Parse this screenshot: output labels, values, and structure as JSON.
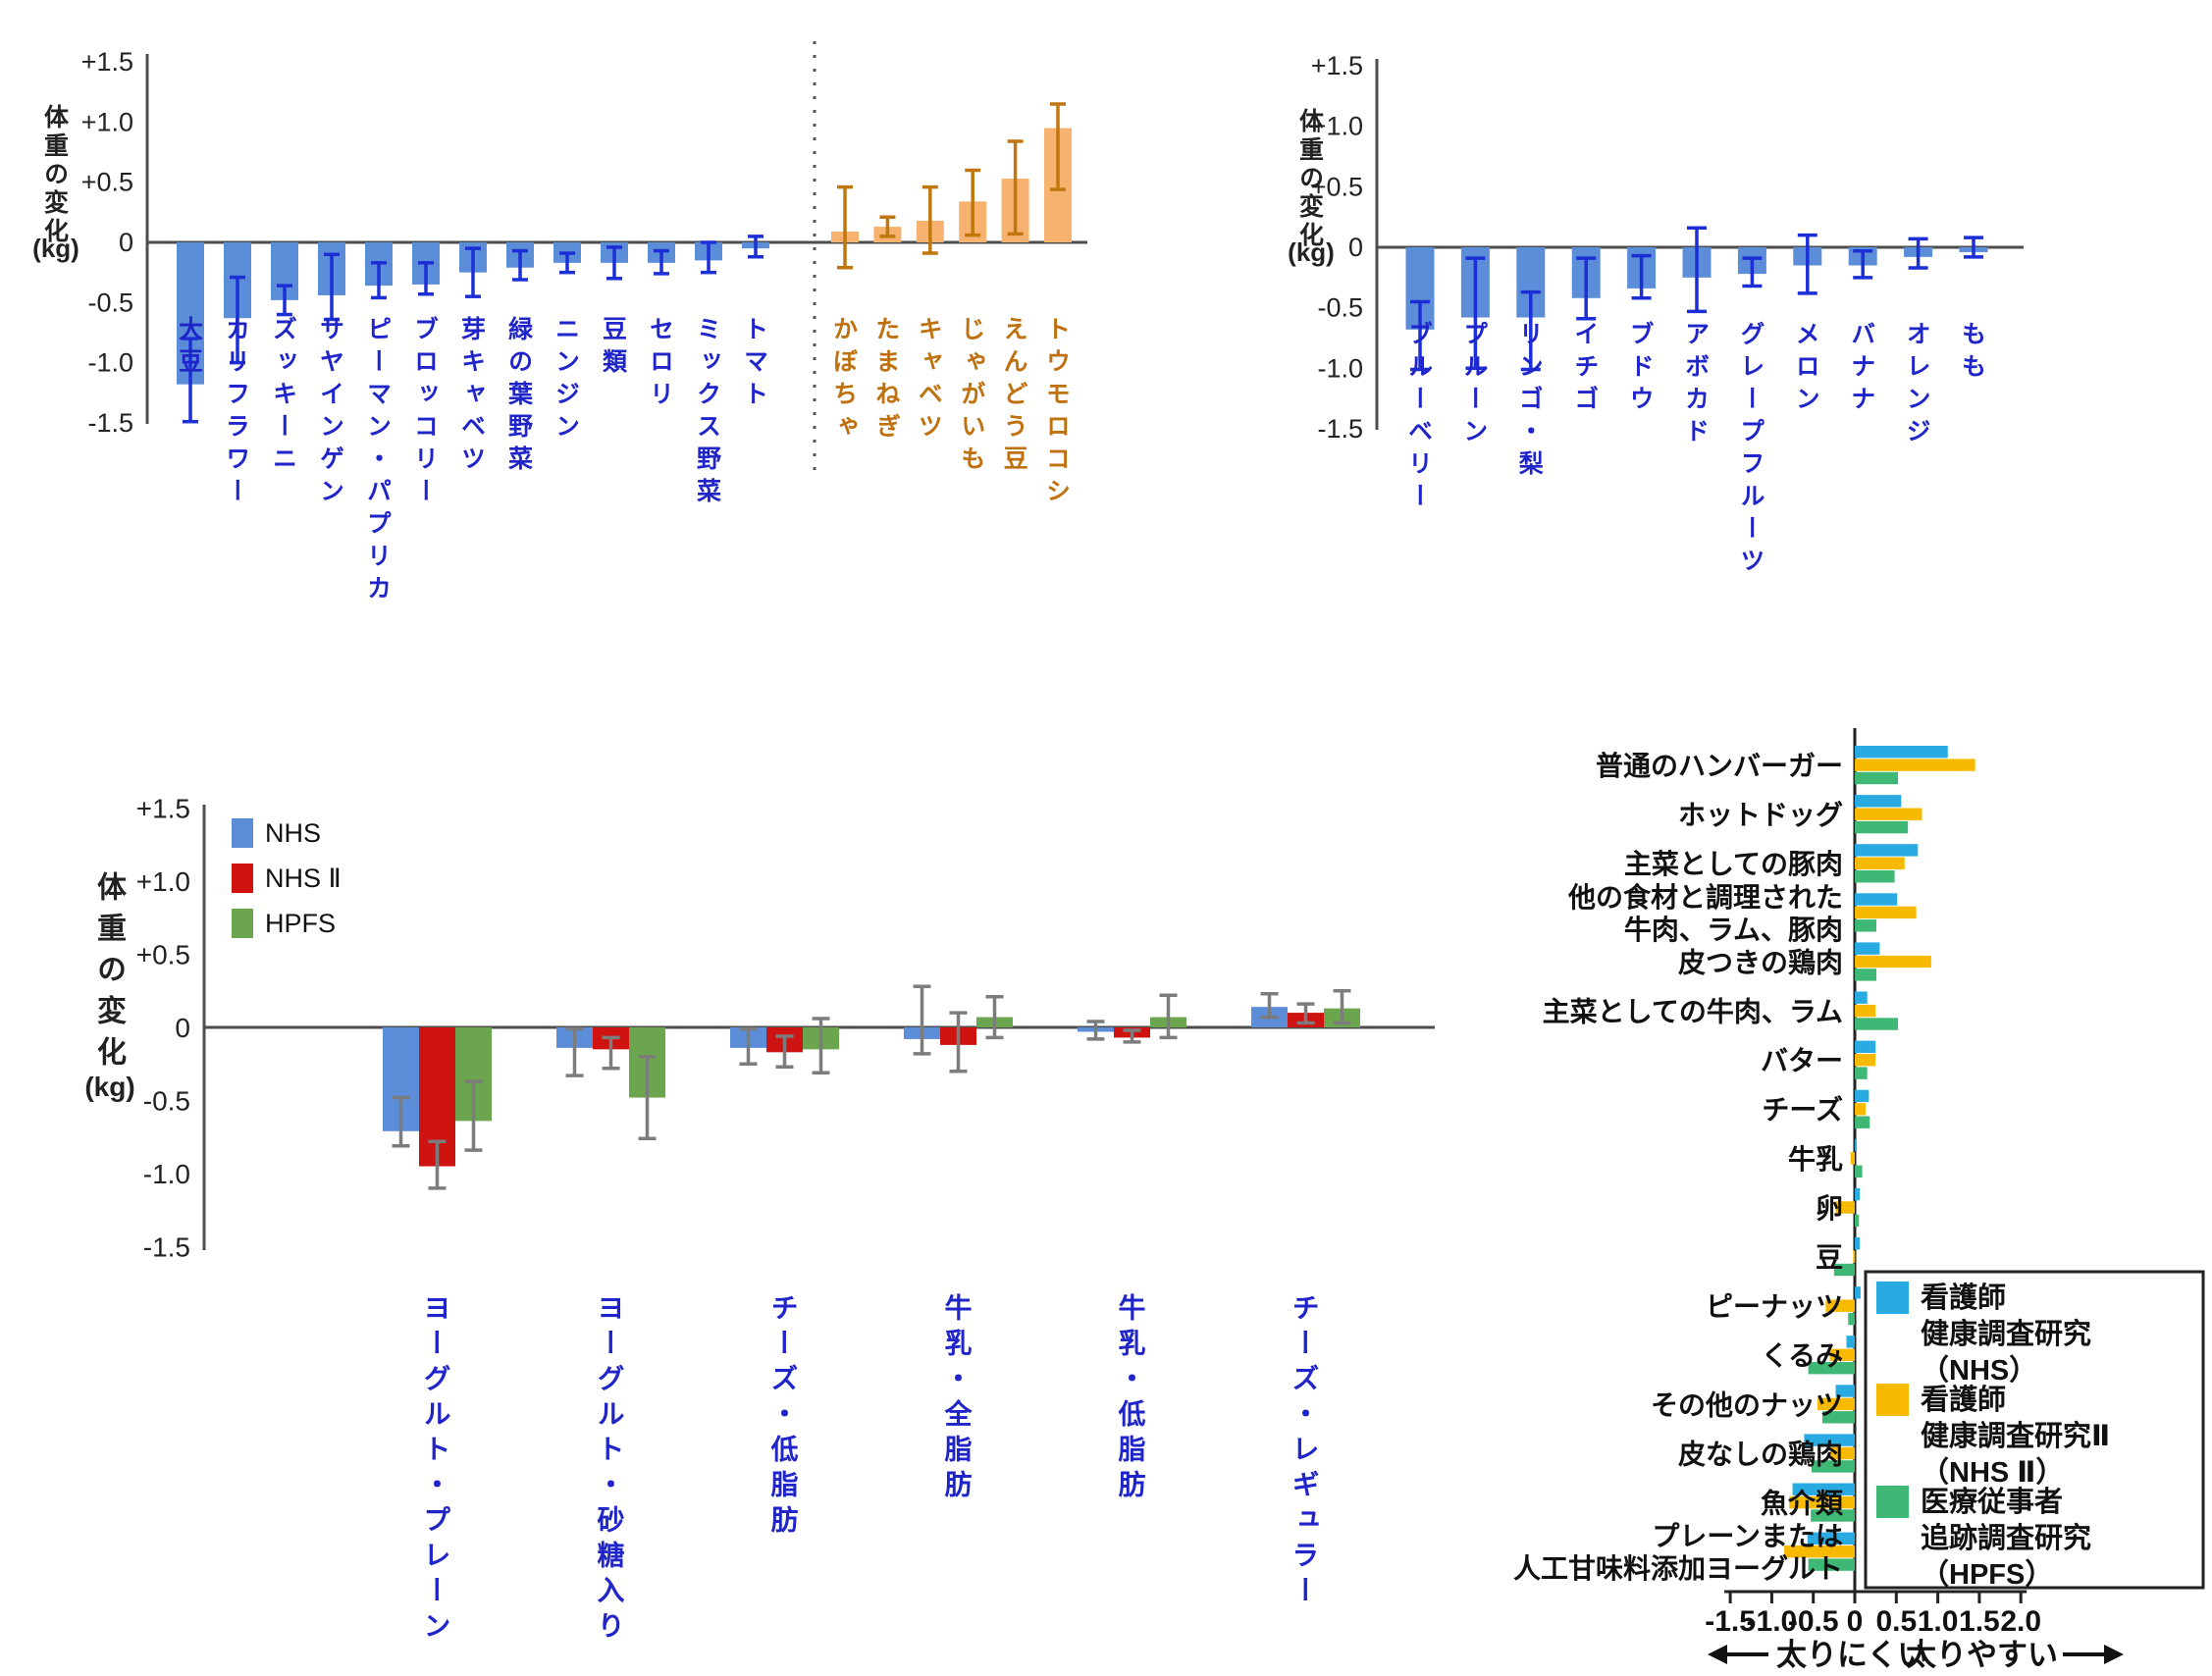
{
  "ylabel": {
    "kanji": "体重の変化",
    "unit": "(kg)"
  },
  "colors": {
    "bar_blue": "#5b8dd9",
    "err_blue": "#1c2fd6",
    "bar_orange": "#f6b26e",
    "err_orange": "#c0770f",
    "label_blue": "#1f25c8",
    "label_orange": "#bf7110",
    "red": "#ce1311",
    "green": "#6ba54e",
    "err_gray": "#7c7c7c",
    "cyan": "#29abe2",
    "yellow": "#f8ba00",
    "hgreen": "#3eb874",
    "axis": "#4d4d4d",
    "text": "#222222"
  },
  "chart_data": [
    {
      "type": "bar",
      "name": "vegetables-weight-change",
      "ylabel": "体重の変化 (kg)",
      "ylim": [
        -1.5,
        1.5
      ],
      "ytick_labels": [
        "+1.5",
        "+1.0",
        "+0.5",
        "0",
        "-0.5",
        "-1.0",
        "-1.5"
      ],
      "ytick_values": [
        1.5,
        1.0,
        0.5,
        0,
        -0.5,
        -1.0,
        -1.5
      ],
      "separator_after_index": 12,
      "items": [
        {
          "label": "大豆",
          "value": -1.18,
          "ci": [
            -1.49,
            -0.8
          ],
          "tone": "blue"
        },
        {
          "label": "カリフラワー",
          "value": -0.63,
          "ci": [
            -1.0,
            -0.29
          ],
          "tone": "blue"
        },
        {
          "label": "ズッキーニ",
          "value": -0.48,
          "ci": [
            -0.6,
            -0.36
          ],
          "tone": "blue"
        },
        {
          "label": "サヤインゲン",
          "value": -0.44,
          "ci": [
            -0.64,
            -0.1
          ],
          "tone": "blue"
        },
        {
          "label": "ピーマン・パプリカ",
          "value": -0.36,
          "ci": [
            -0.46,
            -0.17
          ],
          "tone": "blue"
        },
        {
          "label": "ブロッコリー",
          "value": -0.35,
          "ci": [
            -0.43,
            -0.17
          ],
          "tone": "blue"
        },
        {
          "label": "芽キャベツ",
          "value": -0.25,
          "ci": [
            -0.45,
            -0.05
          ],
          "tone": "blue"
        },
        {
          "label": "緑の葉野菜",
          "value": -0.21,
          "ci": [
            -0.31,
            -0.07
          ],
          "tone": "blue"
        },
        {
          "label": "ニンジン",
          "value": -0.17,
          "ci": [
            -0.25,
            -0.09
          ],
          "tone": "blue"
        },
        {
          "label": "豆類",
          "value": -0.17,
          "ci": [
            -0.3,
            -0.04
          ],
          "tone": "blue"
        },
        {
          "label": "セロリ",
          "value": -0.17,
          "ci": [
            -0.26,
            -0.07
          ],
          "tone": "blue"
        },
        {
          "label": "ミックス野菜",
          "value": -0.15,
          "ci": [
            -0.25,
            0.0
          ],
          "tone": "blue"
        },
        {
          "label": "トマト",
          "value": -0.05,
          "ci": [
            -0.12,
            0.05
          ],
          "tone": "blue"
        },
        {
          "label": "かぼちゃ",
          "value": 0.09,
          "ci": [
            -0.21,
            0.46
          ],
          "tone": "orange"
        },
        {
          "label": "たまねぎ",
          "value": 0.13,
          "ci": [
            0.05,
            0.21
          ],
          "tone": "orange"
        },
        {
          "label": "キャベツ",
          "value": 0.18,
          "ci": [
            -0.09,
            0.46
          ],
          "tone": "orange"
        },
        {
          "label": "じゃがいも",
          "value": 0.34,
          "ci": [
            0.06,
            0.6
          ],
          "tone": "orange"
        },
        {
          "label": "えんどう豆",
          "value": 0.53,
          "ci": [
            0.07,
            0.84
          ],
          "tone": "orange"
        },
        {
          "label": "トウモロコシ",
          "value": 0.95,
          "ci": [
            0.44,
            1.15
          ],
          "tone": "orange"
        }
      ]
    },
    {
      "type": "bar",
      "name": "fruits-weight-change",
      "ylabel": "体重の変化 (kg)",
      "ylim": [
        -1.5,
        1.5
      ],
      "ytick_labels": [
        "+1.5",
        "+1.0",
        "+0.5",
        "0",
        "-0.5",
        "-1.0",
        "-1.5"
      ],
      "ytick_values": [
        1.5,
        1.0,
        0.5,
        0,
        -0.5,
        -1.0,
        -1.5
      ],
      "items": [
        {
          "label": "ブルーベリー",
          "value": -0.68,
          "ci": [
            -1.01,
            -0.45
          ],
          "tone": "blue"
        },
        {
          "label": "プルーン",
          "value": -0.58,
          "ci": [
            -1.0,
            -0.09
          ],
          "tone": "blue"
        },
        {
          "label": "リンゴ・梨",
          "value": -0.58,
          "ci": [
            -1.01,
            -0.37
          ],
          "tone": "blue"
        },
        {
          "label": "イチゴ",
          "value": -0.42,
          "ci": [
            -0.59,
            -0.09
          ],
          "tone": "blue"
        },
        {
          "label": "ブドウ",
          "value": -0.34,
          "ci": [
            -0.42,
            -0.07
          ],
          "tone": "blue"
        },
        {
          "label": "アボカド",
          "value": -0.25,
          "ci": [
            -0.53,
            0.16
          ],
          "tone": "blue"
        },
        {
          "label": "グレープフルーツ",
          "value": -0.22,
          "ci": [
            -0.32,
            -0.09
          ],
          "tone": "blue"
        },
        {
          "label": "メロン",
          "value": -0.15,
          "ci": [
            -0.38,
            0.1
          ],
          "tone": "blue"
        },
        {
          "label": "バナナ",
          "value": -0.15,
          "ci": [
            -0.25,
            -0.03
          ],
          "tone": "blue"
        },
        {
          "label": "オレンジ",
          "value": -0.08,
          "ci": [
            -0.17,
            0.07
          ],
          "tone": "blue"
        },
        {
          "label": "もも",
          "value": -0.04,
          "ci": [
            -0.08,
            0.08
          ],
          "tone": "blue"
        }
      ]
    },
    {
      "type": "grouped-bar",
      "name": "dairy-weight-change",
      "ylabel": "体重の変化 (kg)",
      "ylim": [
        -1.5,
        1.5
      ],
      "ytick_labels": [
        "+1.5",
        "+1.0",
        "+0.5",
        "0",
        "-0.5",
        "-1.0",
        "-1.5"
      ],
      "ytick_values": [
        1.5,
        1.0,
        0.5,
        0,
        -0.5,
        -1.0,
        -1.5
      ],
      "legend": [
        {
          "label": "NHS",
          "color": "bar_blue"
        },
        {
          "label": "NHS Ⅱ",
          "color": "red"
        },
        {
          "label": "HPFS",
          "color": "green"
        }
      ],
      "categories": [
        "ヨーグルト・プレーン",
        "ヨーグルト・砂糖入り",
        "チーズ・低脂肪",
        "牛乳・全脂肪",
        "牛乳・低脂肪",
        "チーズ・レギュラー"
      ],
      "series": [
        {
          "name": "NHS",
          "color": "bar_blue",
          "values": [
            -0.71,
            -0.14,
            -0.14,
            -0.08,
            -0.03,
            0.14
          ],
          "ci": [
            [
              -0.81,
              -0.48
            ],
            [
              -0.33,
              -0.01
            ],
            [
              -0.25,
              -0.01
            ],
            [
              -0.18,
              0.28
            ],
            [
              -0.08,
              0.04
            ],
            [
              0.07,
              0.23
            ]
          ]
        },
        {
          "name": "NHS Ⅱ",
          "color": "red",
          "values": [
            -0.95,
            -0.15,
            -0.17,
            -0.12,
            -0.07,
            0.1
          ],
          "ci": [
            [
              -1.1,
              -0.78
            ],
            [
              -0.28,
              -0.07
            ],
            [
              -0.27,
              -0.06
            ],
            [
              -0.3,
              0.1
            ],
            [
              -0.1,
              -0.02
            ],
            [
              0.03,
              0.16
            ]
          ]
        },
        {
          "name": "HPFS",
          "color": "green",
          "values": [
            -0.64,
            -0.48,
            -0.15,
            0.07,
            0.07,
            0.13
          ],
          "ci": [
            [
              -0.84,
              -0.37
            ],
            [
              -0.76,
              -0.2
            ],
            [
              -0.31,
              0.06
            ],
            [
              -0.07,
              0.21
            ],
            [
              -0.07,
              0.22
            ],
            [
              0.03,
              0.25
            ]
          ]
        }
      ]
    },
    {
      "type": "hbar",
      "name": "protein-foods-weight-change",
      "xlim": [
        -1.5,
        2.0
      ],
      "xtick_labels": [
        "-1.5",
        "-1.0",
        "-0.5",
        "0",
        "0.5",
        "1.0",
        "1.5",
        "2.0"
      ],
      "xtick_values": [
        -1.5,
        -1.0,
        -0.5,
        0,
        0.5,
        1.0,
        1.5,
        2.0
      ],
      "annotations": {
        "left": "太りにくい",
        "right": "太りやすい"
      },
      "legend": [
        {
          "lines": [
            "看護師",
            "健康調査研究",
            "（NHS）"
          ],
          "color": "cyan"
        },
        {
          "lines": [
            "看護師",
            "健康調査研究Ⅱ",
            "（NHS Ⅱ）"
          ],
          "color": "yellow"
        },
        {
          "lines": [
            "医療従事者",
            "追跡調査研究",
            "（HPFS）"
          ],
          "color": "hgreen"
        }
      ],
      "categories": [
        [
          "普通のハンバーガー"
        ],
        [
          "ホットドッグ"
        ],
        [
          "主菜としての豚肉"
        ],
        [
          "他の食材と調理された",
          "牛肉、ラム、豚肉"
        ],
        [
          "皮つきの鶏肉"
        ],
        [
          "主菜としての牛肉、ラム"
        ],
        [
          "バター"
        ],
        [
          "チーズ"
        ],
        [
          "牛乳"
        ],
        [
          "卵"
        ],
        [
          "豆"
        ],
        [
          "ピーナッツ"
        ],
        [
          "くるみ"
        ],
        [
          "その他のナッツ"
        ],
        [
          "皮なしの鶏肉"
        ],
        [
          "魚介類"
        ],
        [
          "プレーンまたは",
          "人工甘味料添加ヨーグルト"
        ]
      ],
      "series": [
        {
          "name": "看護師健康調査研究（NHS）",
          "color": "cyan",
          "values": [
            1.12,
            0.56,
            0.76,
            0.51,
            0.3,
            0.15,
            0.25,
            0.17,
            0.02,
            0.06,
            0.06,
            0.07,
            -0.1,
            -0.23,
            -0.61,
            -0.75,
            -0.57
          ]
        },
        {
          "name": "看護師健康調査研究Ⅱ（NHS Ⅱ）",
          "color": "yellow",
          "values": [
            1.45,
            0.81,
            0.6,
            0.74,
            0.92,
            0.25,
            0.25,
            0.13,
            -0.05,
            -0.23,
            -0.02,
            -0.35,
            -0.3,
            -0.45,
            -0.29,
            -0.79,
            -0.85
          ]
        },
        {
          "name": "医療従事者追跡調査研究（HPFS）",
          "color": "hgreen",
          "values": [
            0.52,
            0.64,
            0.48,
            0.26,
            0.26,
            0.52,
            0.15,
            0.18,
            0.09,
            0.05,
            -0.25,
            -0.08,
            -0.56,
            -0.39,
            -0.52,
            -0.53,
            -0.56
          ]
        }
      ]
    }
  ]
}
